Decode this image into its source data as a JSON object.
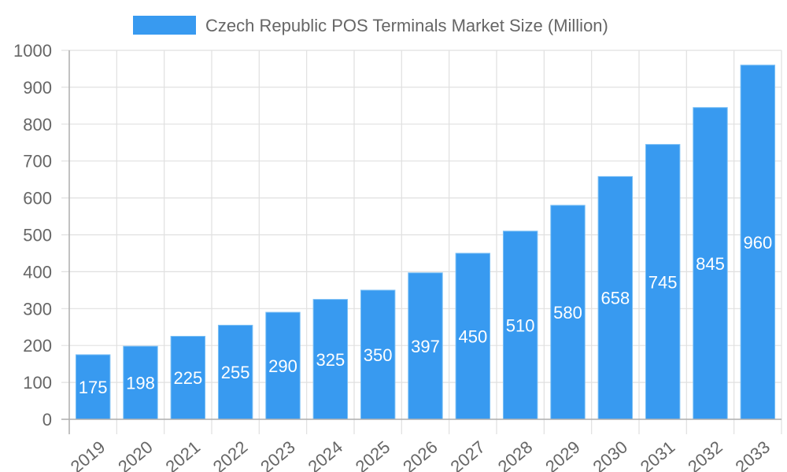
{
  "chart_data": {
    "type": "bar",
    "title": "Czech Republic POS Terminals Market Size (Million)",
    "xlabel": "",
    "ylabel": "",
    "categories": [
      "2019",
      "2020",
      "2021",
      "2022",
      "2023",
      "2024",
      "2025",
      "2026",
      "2027",
      "2028",
      "2029",
      "2030",
      "2031",
      "2032",
      "2033"
    ],
    "series": [
      {
        "name": "Czech Republic POS Terminals Market Size (Million)",
        "values": [
          175,
          198,
          225,
          255,
          290,
          325,
          350,
          397,
          450,
          510,
          580,
          658,
          745,
          845,
          960
        ],
        "color": "#389af0",
        "border_color": "#7cc0f5"
      }
    ],
    "ylim": [
      0,
      1000
    ],
    "yticks": [
      0,
      100,
      200,
      300,
      400,
      500,
      600,
      700,
      800,
      900,
      1000
    ],
    "grid": true,
    "legend_position": "top",
    "data_labels": true
  },
  "colors": {
    "bar": "#389af0",
    "grid": "#e0e0e0",
    "axis": "#b0b0b0",
    "text": "#666666",
    "label": "#ffffff"
  }
}
